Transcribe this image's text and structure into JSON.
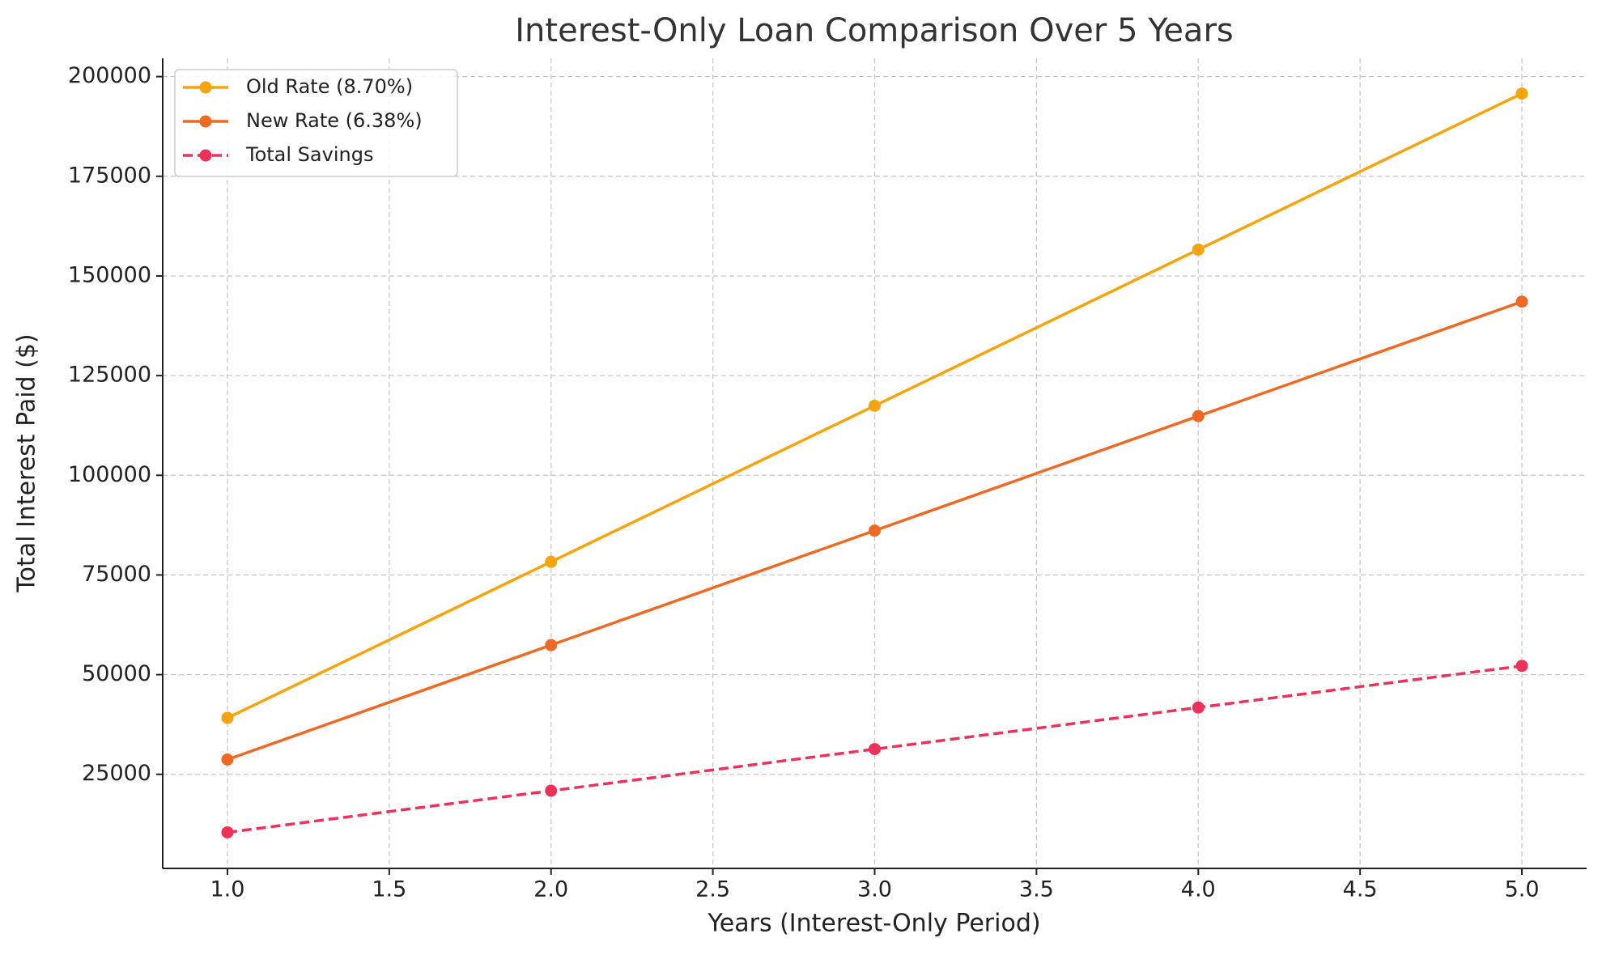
{
  "chart_data": {
    "type": "line",
    "title": "Interest-Only Loan Comparison Over 5 Years",
    "x_label": "Years (Interest-Only Period)",
    "y_label": "Total Interest Paid ($)",
    "x": [
      1,
      2,
      3,
      4,
      5
    ],
    "series": [
      {
        "name": "Old Rate (8.70%)",
        "color": "#f5a40c",
        "linestyle": "solid",
        "values": [
          39150,
          78300,
          117450,
          156600,
          195750
        ]
      },
      {
        "name": "New Rate (6.38%)",
        "color": "#ee6a24",
        "linestyle": "solid",
        "values": [
          28710,
          57420,
          86130,
          114840,
          143550
        ]
      },
      {
        "name": "Total Savings",
        "color": "#ee3158",
        "linestyle": "dashed",
        "values": [
          10440,
          20880,
          31320,
          41760,
          52200
        ]
      }
    ],
    "xlim": [
      0.8,
      5.2
    ],
    "xticks": [
      {
        "value": 1,
        "label": "1.0"
      },
      1.5,
      {
        "value": 2,
        "label": "2.0"
      },
      2.5,
      {
        "value": 3,
        "label": "3.0"
      },
      3.5,
      {
        "value": 4,
        "label": "4.0"
      },
      4.5,
      {
        "value": 5,
        "label": "5.0"
      }
    ],
    "ylim": [
      1400,
      204600
    ],
    "yticks": [
      25000,
      50000,
      75000,
      100000,
      125000,
      150000,
      175000,
      200000
    ],
    "grid": true,
    "legend": "upper left"
  }
}
